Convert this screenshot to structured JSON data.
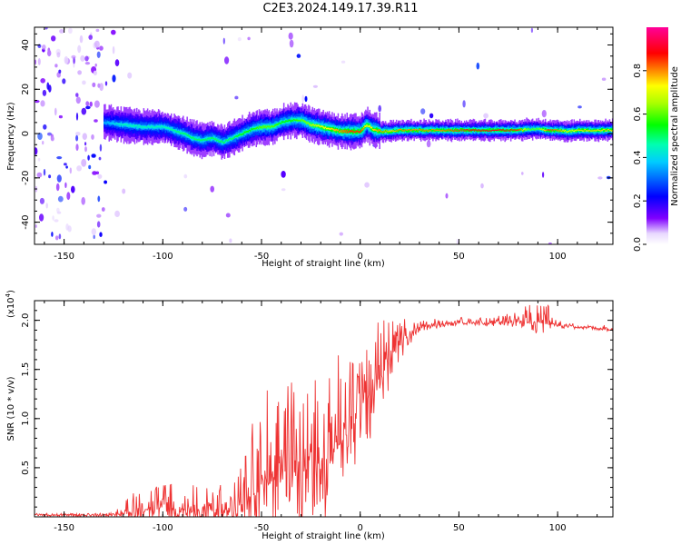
{
  "title": "C2E3.2024.149.17.39.R11",
  "chart_data": [
    {
      "type": "heatmap",
      "xlabel": "Height of straight line (km)",
      "ylabel": "Frequency (Hz)",
      "xlim": [
        -165,
        128
      ],
      "ylim": [
        -50,
        48
      ],
      "xticks": [
        -150,
        -100,
        -50,
        0,
        50,
        100
      ],
      "yticks": [
        -40,
        -20,
        0,
        20,
        40
      ],
      "colorbar": {
        "label": "Normalized spectral amplitude",
        "range": [
          0,
          1
        ],
        "ticks": [
          0.0,
          0.2,
          0.4,
          0.6,
          0.8
        ]
      },
      "ridge": {
        "x": [
          -130,
          -120,
          -110,
          -100,
          -90,
          -85,
          -80,
          -75,
          -70,
          -65,
          -60,
          -55,
          -50,
          -45,
          -40,
          -35,
          -30,
          -25,
          -20,
          -15,
          -10,
          -5,
          0,
          3,
          6,
          10,
          15,
          20,
          30,
          40,
          50,
          60,
          70,
          80,
          85,
          90,
          95,
          100,
          105,
          110,
          120,
          128
        ],
        "y": [
          5,
          4,
          3,
          3,
          0,
          -2,
          -3,
          -2,
          -4,
          -2,
          0,
          2,
          3,
          3,
          5,
          6,
          6,
          4,
          3,
          2,
          1,
          1,
          1,
          4,
          2,
          1,
          1,
          1.5,
          1.5,
          1.5,
          1.5,
          1.5,
          1.5,
          1.5,
          2,
          2,
          1.5,
          1.5,
          1,
          1.5,
          1.5,
          1.5
        ],
        "amplitude": [
          0.35,
          0.45,
          0.45,
          0.45,
          0.5,
          0.5,
          0.5,
          0.5,
          0.5,
          0.5,
          0.55,
          0.55,
          0.6,
          0.6,
          0.55,
          0.55,
          0.6,
          0.65,
          0.7,
          0.75,
          0.8,
          0.85,
          0.85,
          0.7,
          0.75,
          0.8,
          0.75,
          0.8,
          0.8,
          0.8,
          0.85,
          0.9,
          0.9,
          0.85,
          0.6,
          0.6,
          0.85,
          0.8,
          0.7,
          0.75,
          0.75,
          0.75
        ]
      }
    },
    {
      "type": "line",
      "xlabel": "Height of straight line (km)",
      "ylabel": "SNR (10 * v/v)",
      "exponent_label": "(x10",
      "exponent_power": "4",
      "exponent_close": ")",
      "xlim": [
        -165,
        128
      ],
      "ylim": [
        0,
        2.2
      ],
      "xticks": [
        -150,
        -100,
        -50,
        0,
        50,
        100
      ],
      "yticks": [
        0.5,
        1.0,
        1.5,
        2.0
      ],
      "ytick_labels": [
        "0.5",
        "1.0",
        "1.5",
        "2.0"
      ],
      "line_color": "#ee3333",
      "envelope": {
        "x": [
          -165,
          -140,
          -125,
          -115,
          -105,
          -95,
          -85,
          -75,
          -65,
          -58,
          -52,
          -48,
          -40,
          -35,
          -30,
          -25,
          -20,
          -15,
          -10,
          -5,
          0,
          5,
          10,
          15,
          20,
          25,
          30,
          40,
          50,
          60,
          70,
          80,
          90,
          95,
          100,
          105,
          110,
          120,
          128
        ],
        "base": [
          0.02,
          0.02,
          0.02,
          0.05,
          0.08,
          0.08,
          0.07,
          0.06,
          0.07,
          0.15,
          0.3,
          0.4,
          0.4,
          0.45,
          0.45,
          0.5,
          0.55,
          0.65,
          0.75,
          0.9,
          1.1,
          1.25,
          1.4,
          1.55,
          1.75,
          1.85,
          1.92,
          1.96,
          1.98,
          1.98,
          1.98,
          1.99,
          1.98,
          1.97,
          1.95,
          1.94,
          1.93,
          1.92,
          1.91
        ],
        "spike": [
          0.0,
          0.0,
          0.02,
          0.2,
          0.25,
          0.3,
          0.3,
          0.3,
          0.25,
          0.5,
          1.1,
          0.9,
          0.8,
          1.0,
          0.9,
          1.0,
          1.1,
          1.0,
          0.95,
          0.9,
          0.85,
          0.75,
          0.65,
          0.45,
          0.3,
          0.15,
          0.08,
          0.05,
          0.04,
          0.05,
          0.05,
          0.12,
          0.2,
          0.18,
          0.08,
          0.03,
          0.02,
          0.02,
          0.02
        ]
      }
    }
  ]
}
